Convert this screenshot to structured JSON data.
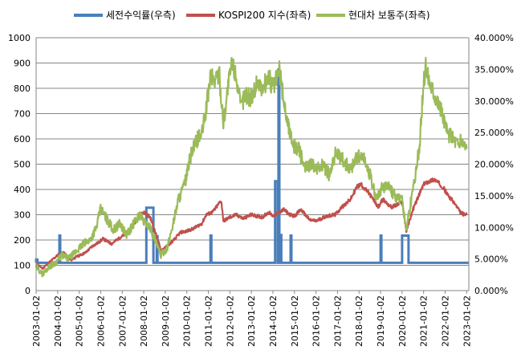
{
  "chart_data": {
    "type": "line",
    "title": "",
    "x_tick_labels": [
      "2003-01-02",
      "2004-01-02",
      "2005-01-02",
      "2006-01-02",
      "2007-01-02",
      "2008-01-02",
      "2009-01-02",
      "2010-01-02",
      "2011-01-02",
      "2012-01-02",
      "2013-01-02",
      "2014-01-02",
      "2015-01-02",
      "2016-01-02",
      "2017-01-02",
      "2018-01-02",
      "2019-01-02",
      "2020-01-02",
      "2021-01-02",
      "2022-01-02",
      "2023-01-02"
    ],
    "y_left": {
      "min": 0,
      "max": 1000,
      "ticks": [
        "0",
        "100",
        "200",
        "300",
        "400",
        "500",
        "600",
        "700",
        "800",
        "900",
        "1000"
      ]
    },
    "y_right": {
      "min": 0,
      "max": 40,
      "ticks": [
        "0.000%",
        "5.000%",
        "10.000%",
        "15.000%",
        "20.000%",
        "25.000%",
        "30.000%",
        "35.000%",
        "40.000%"
      ]
    },
    "grid": "horizontal",
    "legend_position": "top",
    "series": [
      {
        "name": "세전수익률(우측)",
        "axis": "right",
        "color": "#4A7EBB",
        "baseline": 4.4,
        "spikes": [
          {
            "from": 2003.0,
            "to": 2003.06,
            "value": 4.9
          },
          {
            "from": 2004.08,
            "to": 2004.12,
            "value": 8.7
          },
          {
            "from": 2008.12,
            "to": 2008.45,
            "value": 13.1
          },
          {
            "from": 2008.6,
            "to": 2008.64,
            "value": 8.6
          },
          {
            "from": 2011.1,
            "to": 2011.14,
            "value": 8.7
          },
          {
            "from": 2014.1,
            "to": 2014.22,
            "value": 17.3
          },
          {
            "from": 2014.26,
            "to": 2014.3,
            "value": 35.0
          },
          {
            "from": 2014.35,
            "to": 2014.39,
            "value": 8.8
          },
          {
            "from": 2014.82,
            "to": 2014.86,
            "value": 8.7
          },
          {
            "from": 2019.0,
            "to": 2019.04,
            "value": 8.7
          },
          {
            "from": 2020.0,
            "to": 2020.3,
            "value": 8.7
          }
        ]
      },
      {
        "name": "KOSPI200 지수(좌측)",
        "axis": "left",
        "color": "#C0504D",
        "points": [
          [
            2003.0,
            105
          ],
          [
            2003.3,
            88
          ],
          [
            2003.7,
            118
          ],
          [
            2004.0,
            140
          ],
          [
            2004.3,
            150
          ],
          [
            2004.6,
            120
          ],
          [
            2004.9,
            135
          ],
          [
            2005.3,
            150
          ],
          [
            2005.6,
            175
          ],
          [
            2005.9,
            190
          ],
          [
            2006.1,
            205
          ],
          [
            2006.5,
            185
          ],
          [
            2006.9,
            210
          ],
          [
            2007.2,
            225
          ],
          [
            2007.5,
            255
          ],
          [
            2007.8,
            300
          ],
          [
            2008.0,
            310
          ],
          [
            2008.3,
            290
          ],
          [
            2008.5,
            240
          ],
          [
            2008.8,
            160
          ],
          [
            2009.0,
            170
          ],
          [
            2009.4,
            200
          ],
          [
            2009.7,
            230
          ],
          [
            2010.0,
            235
          ],
          [
            2010.3,
            245
          ],
          [
            2010.7,
            265
          ],
          [
            2010.9,
            300
          ],
          [
            2011.2,
            310
          ],
          [
            2011.5,
            345
          ],
          [
            2011.6,
            355
          ],
          [
            2011.7,
            275
          ],
          [
            2012.0,
            290
          ],
          [
            2012.3,
            300
          ],
          [
            2012.6,
            285
          ],
          [
            2013.0,
            300
          ],
          [
            2013.5,
            290
          ],
          [
            2013.8,
            310
          ],
          [
            2014.0,
            295
          ],
          [
            2014.5,
            320
          ],
          [
            2014.8,
            300
          ],
          [
            2015.0,
            295
          ],
          [
            2015.3,
            320
          ],
          [
            2015.7,
            280
          ],
          [
            2016.0,
            275
          ],
          [
            2016.5,
            295
          ],
          [
            2016.9,
            300
          ],
          [
            2017.2,
            330
          ],
          [
            2017.6,
            360
          ],
          [
            2017.9,
            410
          ],
          [
            2018.1,
            420
          ],
          [
            2018.5,
            380
          ],
          [
            2018.9,
            330
          ],
          [
            2019.1,
            360
          ],
          [
            2019.5,
            330
          ],
          [
            2019.8,
            340
          ],
          [
            2020.0,
            350
          ],
          [
            2020.2,
            235
          ],
          [
            2020.5,
            320
          ],
          [
            2020.8,
            380
          ],
          [
            2021.0,
            420
          ],
          [
            2021.2,
            430
          ],
          [
            2021.5,
            440
          ],
          [
            2021.9,
            410
          ],
          [
            2022.1,
            380
          ],
          [
            2022.4,
            350
          ],
          [
            2022.7,
            310
          ],
          [
            2022.9,
            300
          ],
          [
            2023.0,
            300
          ]
        ]
      },
      {
        "name": "현대차 보통주(좌측)",
        "axis": "left",
        "color": "#9BBB59",
        "points": [
          [
            2003.0,
            95
          ],
          [
            2003.3,
            65
          ],
          [
            2003.6,
            95
          ],
          [
            2003.9,
            110
          ],
          [
            2004.2,
            140
          ],
          [
            2004.5,
            125
          ],
          [
            2004.8,
            150
          ],
          [
            2005.2,
            185
          ],
          [
            2005.5,
            200
          ],
          [
            2005.8,
            250
          ],
          [
            2006.0,
            325
          ],
          [
            2006.3,
            280
          ],
          [
            2006.6,
            240
          ],
          [
            2006.9,
            265
          ],
          [
            2007.2,
            220
          ],
          [
            2007.5,
            260
          ],
          [
            2007.8,
            300
          ],
          [
            2008.0,
            275
          ],
          [
            2008.3,
            250
          ],
          [
            2008.6,
            180
          ],
          [
            2008.8,
            140
          ],
          [
            2009.1,
            170
          ],
          [
            2009.4,
            280
          ],
          [
            2009.6,
            360
          ],
          [
            2009.9,
            420
          ],
          [
            2010.2,
            540
          ],
          [
            2010.5,
            600
          ],
          [
            2010.7,
            620
          ],
          [
            2010.9,
            720
          ],
          [
            2011.1,
            850
          ],
          [
            2011.3,
            830
          ],
          [
            2011.5,
            860
          ],
          [
            2011.7,
            660
          ],
          [
            2011.9,
            800
          ],
          [
            2012.1,
            900
          ],
          [
            2012.3,
            850
          ],
          [
            2012.5,
            720
          ],
          [
            2012.7,
            780
          ],
          [
            2013.0,
            760
          ],
          [
            2013.3,
            830
          ],
          [
            2013.5,
            790
          ],
          [
            2013.8,
            850
          ],
          [
            2014.0,
            800
          ],
          [
            2014.3,
            870
          ],
          [
            2014.6,
            700
          ],
          [
            2014.8,
            620
          ],
          [
            2015.0,
            570
          ],
          [
            2015.2,
            560
          ],
          [
            2015.5,
            480
          ],
          [
            2015.8,
            510
          ],
          [
            2016.0,
            470
          ],
          [
            2016.3,
            500
          ],
          [
            2016.6,
            460
          ],
          [
            2016.9,
            540
          ],
          [
            2017.2,
            520
          ],
          [
            2017.6,
            480
          ],
          [
            2017.9,
            530
          ],
          [
            2018.2,
            530
          ],
          [
            2018.5,
            460
          ],
          [
            2018.8,
            360
          ],
          [
            2019.0,
            400
          ],
          [
            2019.3,
            420
          ],
          [
            2019.7,
            370
          ],
          [
            2020.0,
            360
          ],
          [
            2020.2,
            240
          ],
          [
            2020.5,
            400
          ],
          [
            2020.8,
            560
          ],
          [
            2021.0,
            820
          ],
          [
            2021.1,
            880
          ],
          [
            2021.3,
            820
          ],
          [
            2021.6,
            760
          ],
          [
            2021.9,
            690
          ],
          [
            2022.1,
            620
          ],
          [
            2022.3,
            610
          ],
          [
            2022.6,
            580
          ],
          [
            2022.8,
            590
          ],
          [
            2023.0,
            560
          ]
        ]
      }
    ]
  }
}
